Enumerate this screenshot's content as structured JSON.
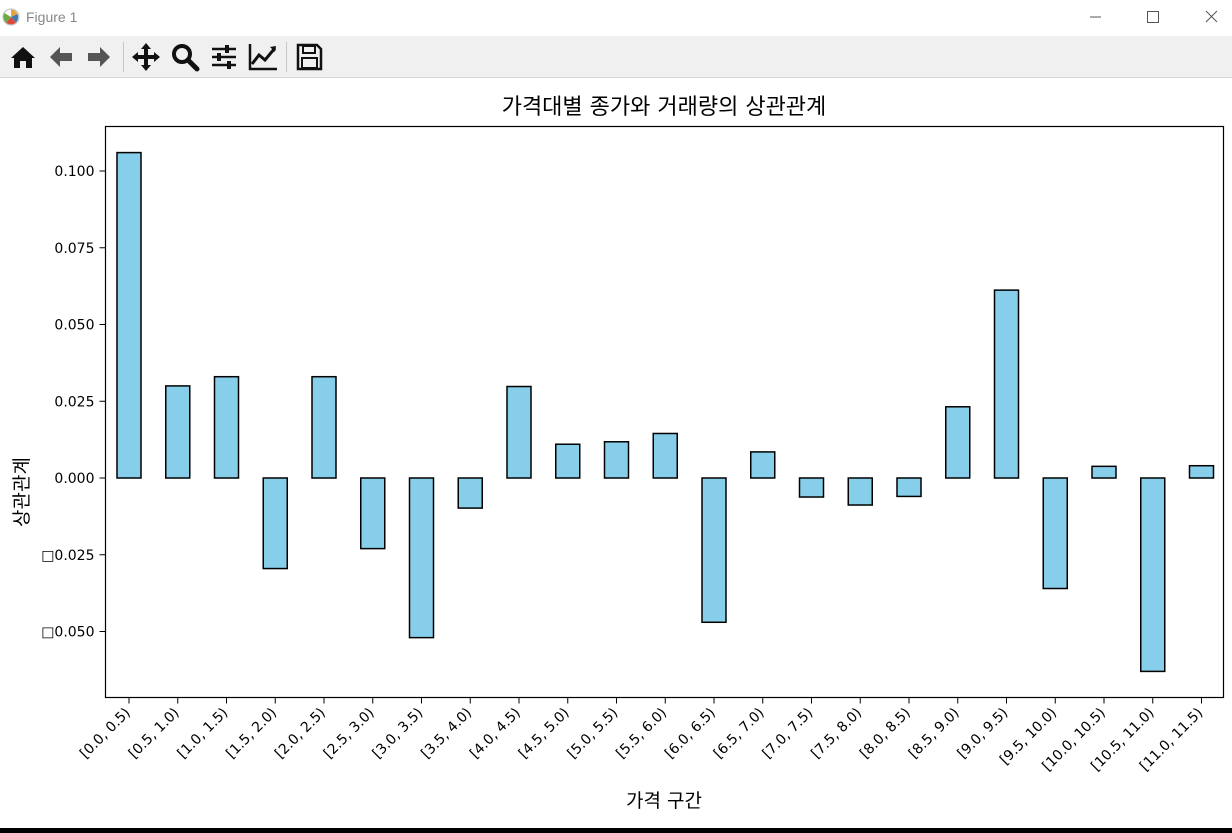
{
  "window": {
    "title": "Figure 1",
    "icons": {
      "app": "matplotlib-icon",
      "minimize": "minimize-icon",
      "maximize": "maximize-icon",
      "close": "close-icon"
    }
  },
  "toolbar": {
    "buttons": [
      {
        "name": "home-button",
        "icon": "home-icon"
      },
      {
        "name": "back-button",
        "icon": "arrow-left-icon"
      },
      {
        "name": "forward-button",
        "icon": "arrow-right-icon"
      },
      {
        "name": "pan-button",
        "icon": "move-icon"
      },
      {
        "name": "zoom-button",
        "icon": "magnifier-icon"
      },
      {
        "name": "configure-subplots-button",
        "icon": "sliders-icon"
      },
      {
        "name": "edit-axis-button",
        "icon": "line-chart-icon"
      },
      {
        "name": "save-button",
        "icon": "floppy-disk-icon"
      }
    ]
  },
  "chart_data": {
    "type": "bar",
    "title": "가격대별 종가와 거래량의 상관관계",
    "xlabel": "가격 구간",
    "ylabel": "상관관계",
    "categories": [
      "[0.0, 0.5)",
      "[0.5, 1.0)",
      "[1.0, 1.5)",
      "[1.5, 2.0)",
      "[2.0, 2.5)",
      "[2.5, 3.0)",
      "[3.0, 3.5)",
      "[3.5, 4.0)",
      "[4.0, 4.5)",
      "[4.5, 5.0)",
      "[5.0, 5.5)",
      "[5.5, 6.0)",
      "[6.0, 6.5)",
      "[6.5, 7.0)",
      "[7.0, 7.5)",
      "[7.5, 8.0)",
      "[8.0, 8.5)",
      "[8.5, 9.0)",
      "[9.0, 9.5)",
      "[9.5, 10.0)",
      "[10.0, 10.5)",
      "[10.5, 11.0)",
      "[11.0, 11.5)"
    ],
    "values": [
      0.106,
      0.03,
      0.033,
      -0.0295,
      0.033,
      -0.023,
      -0.052,
      -0.0098,
      0.0298,
      0.011,
      0.0118,
      0.0145,
      -0.047,
      0.0085,
      -0.0062,
      -0.0088,
      -0.006,
      0.0232,
      0.0612,
      -0.036,
      0.0038,
      -0.063,
      0.004
    ],
    "yticks": [
      -0.05,
      -0.025,
      0.0,
      0.025,
      0.05,
      0.075,
      0.1
    ],
    "ytick_labels": [
      "□0.050",
      "□0.025",
      "0.000",
      "0.025",
      "0.050",
      "0.075",
      "0.100"
    ],
    "ylim": [
      -0.0715,
      0.1145
    ],
    "bar_color": "#87ceeb",
    "edge_color": "#000000",
    "grid": false,
    "legend": "none"
  }
}
